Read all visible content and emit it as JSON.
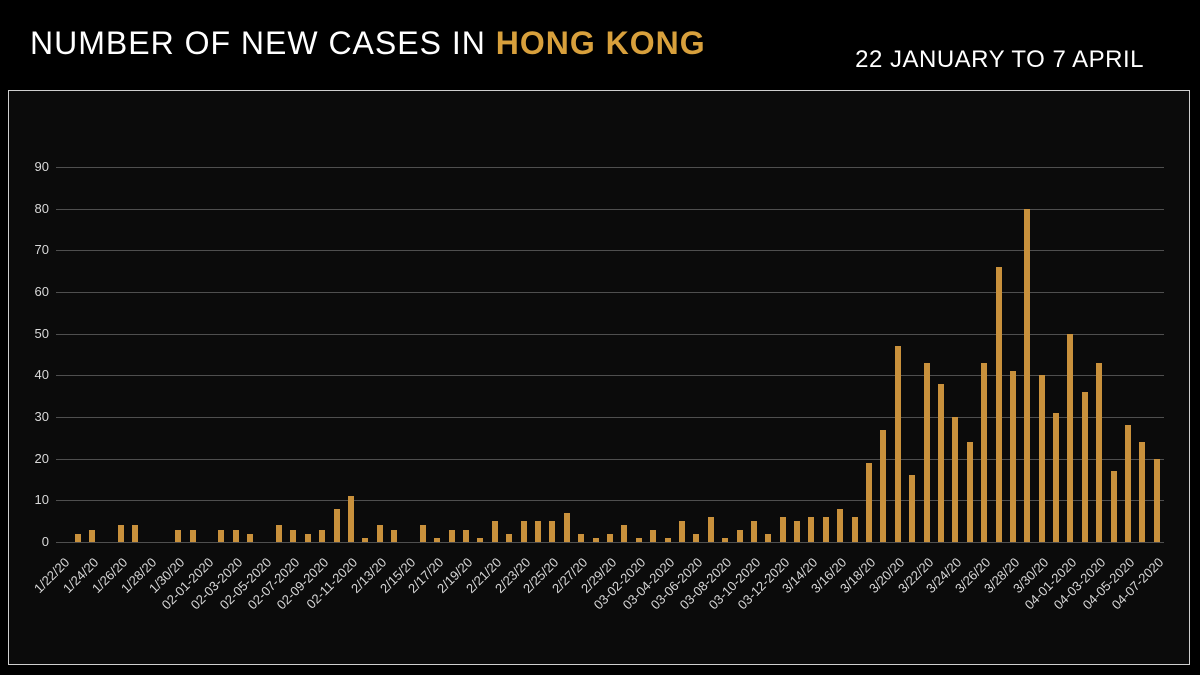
{
  "header": {
    "title_prefix": "NUMBER OF NEW CASES IN ",
    "title_highlight": "HONG KONG",
    "date_range": "22 JANUARY TO 7 APRIL"
  },
  "colors": {
    "background": "#000000",
    "panel_background": "#0b0b0b",
    "panel_border": "#cfcfcf",
    "bar": "#c9913c",
    "gridline": "#4f4f4f",
    "axis_text": "#d9d9d9",
    "title_text": "#ffffff",
    "highlight_text": "#d8a03c"
  },
  "chart_data": {
    "type": "bar",
    "title": "NUMBER OF NEW CASES IN HONG KONG",
    "subtitle": "22 JANUARY TO 7 APRIL",
    "grid": true,
    "legend": false,
    "ylim": [
      0,
      90
    ],
    "y_ticks": [
      0,
      10,
      20,
      30,
      40,
      50,
      60,
      70,
      80,
      90
    ],
    "x_tick_every": 2,
    "x_tick_labels": [
      "1/22/20",
      "1/24/20",
      "1/26/20",
      "1/28/20",
      "1/30/20",
      "02-01-2020",
      "02-03-2020",
      "02-05-2020",
      "02-07-2020",
      "02-09-2020",
      "02-11-2020",
      "2/13/20",
      "2/15/20",
      "2/17/20",
      "2/19/20",
      "2/21/20",
      "2/23/20",
      "2/25/20",
      "2/27/20",
      "2/29/20",
      "03-02-2020",
      "03-04-2020",
      "03-06-2020",
      "03-08-2020",
      "03-10-2020",
      "03-12-2020",
      "3/14/20",
      "3/16/20",
      "3/18/20",
      "3/20/20",
      "3/22/20",
      "3/24/20",
      "3/26/20",
      "3/28/20",
      "3/30/20",
      "04-01-2020",
      "04-03-2020",
      "04-05-2020",
      "04-07-2020"
    ],
    "values": [
      0,
      2,
      3,
      0,
      4,
      4,
      0,
      0,
      3,
      3,
      0,
      3,
      3,
      2,
      0,
      4,
      3,
      2,
      3,
      8,
      11,
      1,
      4,
      3,
      0,
      4,
      1,
      3,
      3,
      1,
      5,
      2,
      5,
      5,
      5,
      7,
      2,
      1,
      2,
      4,
      1,
      3,
      1,
      5,
      2,
      6,
      1,
      3,
      5,
      2,
      6,
      5,
      6,
      6,
      8,
      6,
      19,
      27,
      47,
      16,
      43,
      38,
      30,
      24,
      43,
      66,
      41,
      80,
      40,
      31,
      50,
      36,
      43,
      17,
      28,
      24,
      20
    ]
  }
}
